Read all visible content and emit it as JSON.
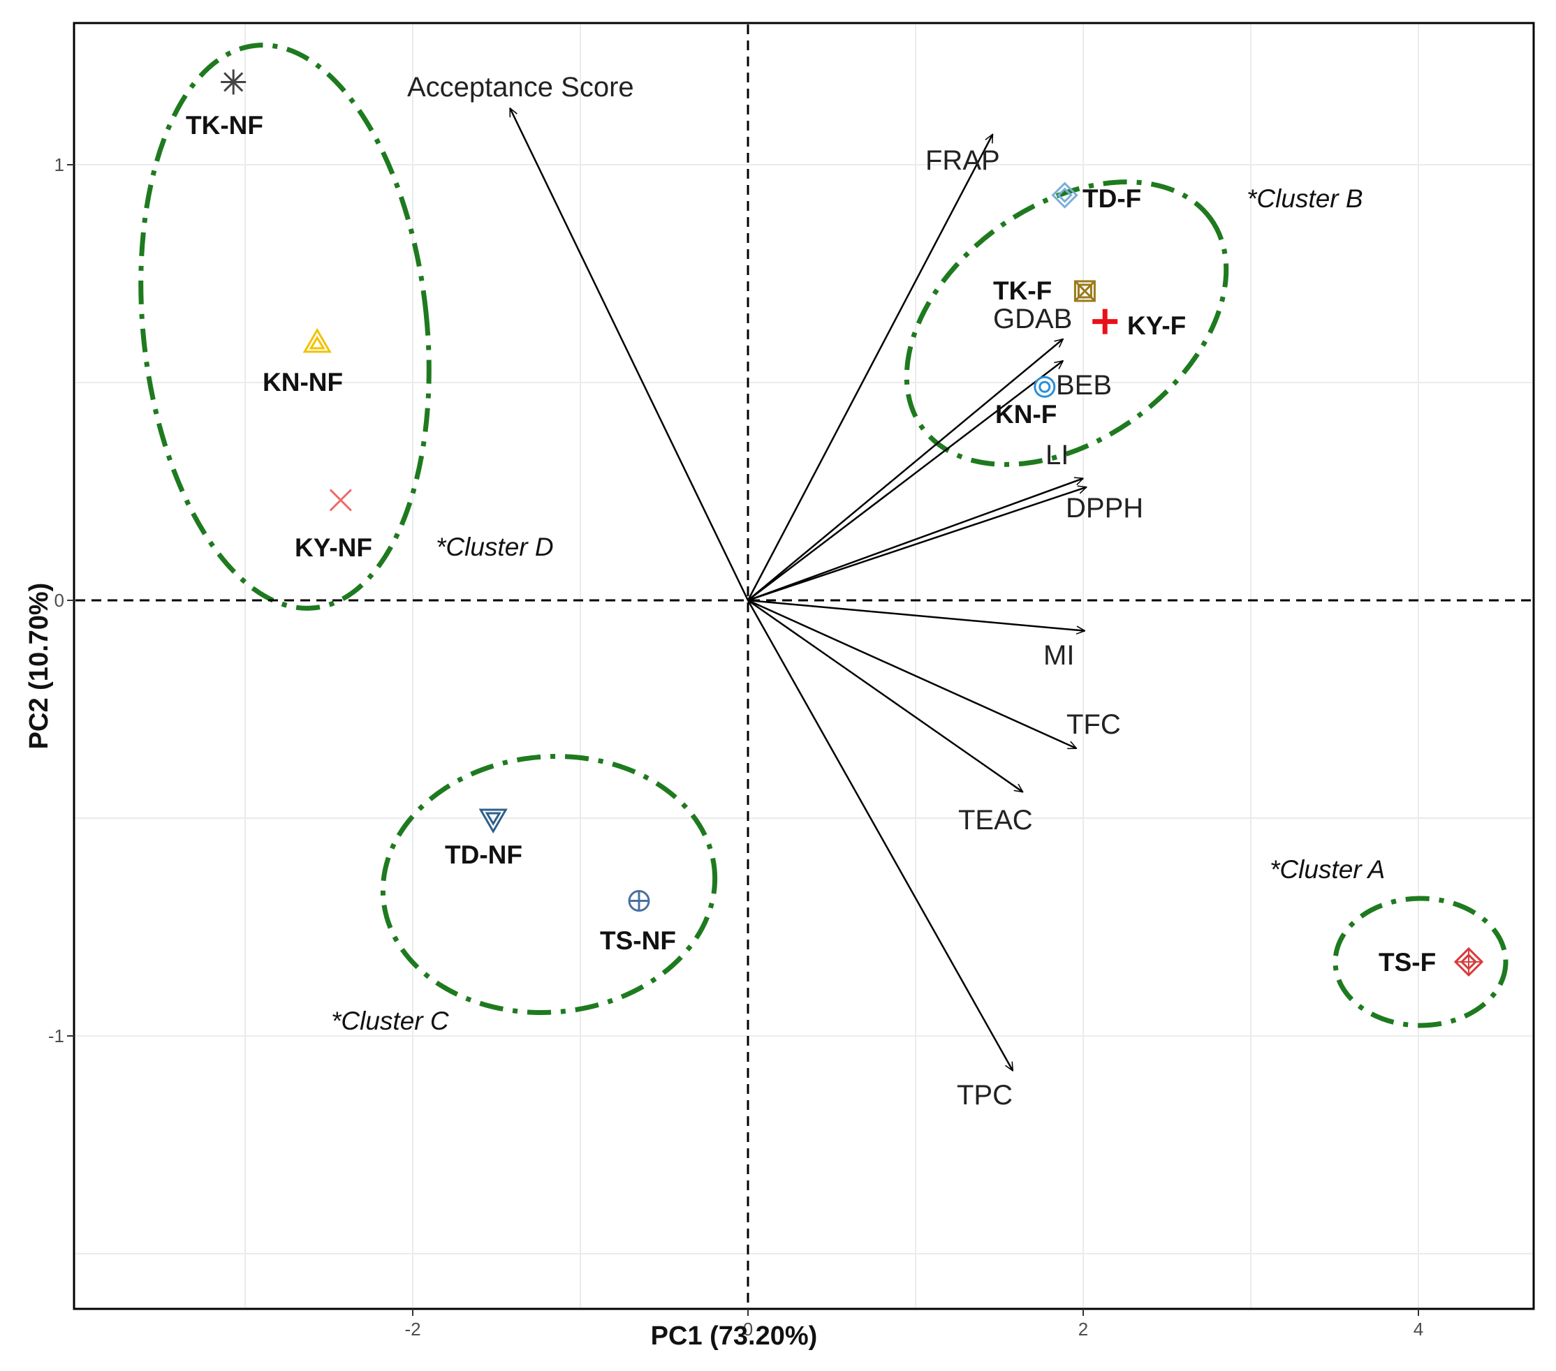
{
  "chart_data": {
    "type": "scatter",
    "subtype": "pca-biplot",
    "xlabel": "PC1 (73.20%)",
    "ylabel": "PC2 (10.70%)",
    "xlim": [
      -4,
      4.65
    ],
    "ylim": [
      -1.62,
      1.32
    ],
    "x_ticks": [
      -2,
      0,
      2,
      4
    ],
    "y_ticks": [
      -1,
      0,
      1
    ],
    "grid": true,
    "reference_lines": {
      "x": 0,
      "y": 0,
      "style": "dashed"
    },
    "colors": {
      "cluster_ellipse": "#1e7a1e",
      "grid": "#ebebeb",
      "arrow": "#000000"
    },
    "samples": [
      {
        "name": "TK-NF",
        "x": -3.07,
        "y": 1.19,
        "marker": "asterisk",
        "color": "#444444"
      },
      {
        "name": "KN-NF",
        "x": -2.57,
        "y": 0.59,
        "marker": "double-triangle-up",
        "color": "#f2c200"
      },
      {
        "name": "KY-NF",
        "x": -2.43,
        "y": 0.23,
        "marker": "cross",
        "color": "#ef6a6a"
      },
      {
        "name": "TD-NF",
        "x": -1.52,
        "y": -0.5,
        "marker": "double-triangle-down",
        "color": "#2d5f8a"
      },
      {
        "name": "TS-NF",
        "x": -0.65,
        "y": -0.69,
        "marker": "circle-plus",
        "color": "#4a6fa0"
      },
      {
        "name": "TD-F",
        "x": 1.89,
        "y": 0.93,
        "marker": "diamond",
        "color": "#7aaed8"
      },
      {
        "name": "TK-F",
        "x": 2.01,
        "y": 0.71,
        "marker": "square-x",
        "color": "#9a7a1a"
      },
      {
        "name": "KY-F",
        "x": 2.13,
        "y": 0.64,
        "marker": "plus",
        "color": "#e8101a"
      },
      {
        "name": "KN-F",
        "x": 1.77,
        "y": 0.49,
        "marker": "double-circle",
        "color": "#2a8fd8"
      },
      {
        "name": "TS-F",
        "x": 4.3,
        "y": -0.83,
        "marker": "diamond-plus",
        "color": "#d83a3a"
      }
    ],
    "loadings": [
      {
        "name": "Acceptance Score",
        "x": -1.42,
        "y": 1.13
      },
      {
        "name": "FRAP",
        "x": 1.46,
        "y": 1.07
      },
      {
        "name": "GDAB",
        "x": 1.88,
        "y": 0.6
      },
      {
        "name": "BEB",
        "x": 1.88,
        "y": 0.55
      },
      {
        "name": "LI",
        "x": 2.0,
        "y": 0.28
      },
      {
        "name": "DPPH",
        "x": 2.02,
        "y": 0.26
      },
      {
        "name": "MI",
        "x": 2.01,
        "y": -0.07
      },
      {
        "name": "TFC",
        "x": 1.96,
        "y": -0.34
      },
      {
        "name": "TEAC",
        "x": 1.64,
        "y": -0.44
      },
      {
        "name": "TPC",
        "x": 1.58,
        "y": -1.08
      }
    ],
    "clusters": [
      {
        "name": "*Cluster A"
      },
      {
        "name": "*Cluster B"
      },
      {
        "name": "*Cluster C"
      },
      {
        "name": "*Cluster D"
      }
    ]
  }
}
